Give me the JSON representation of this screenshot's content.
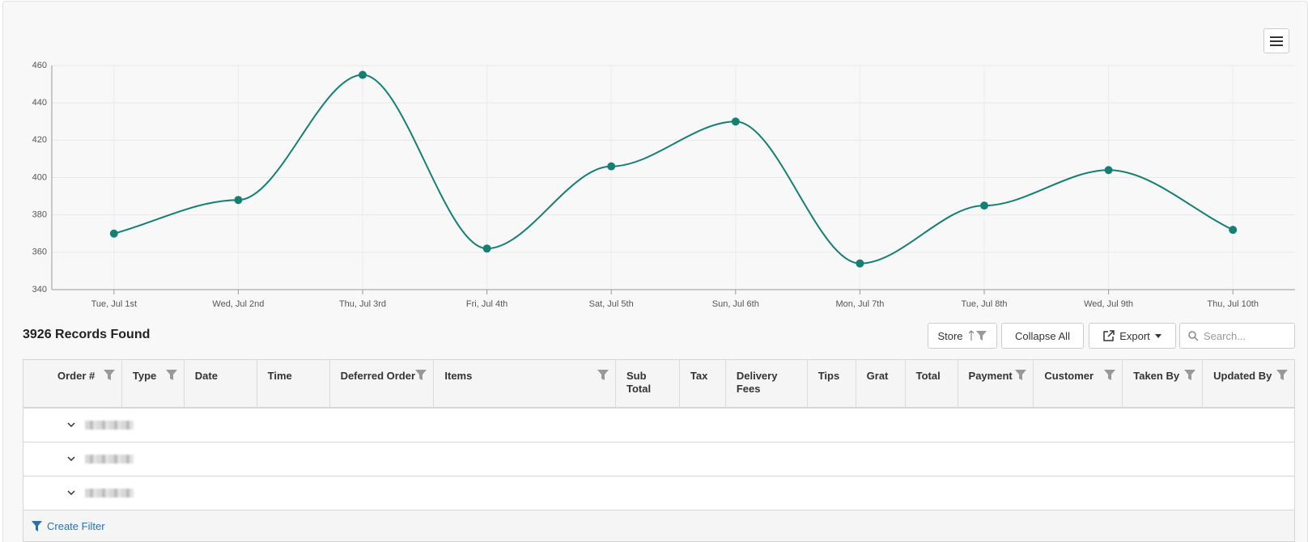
{
  "chart_data": {
    "type": "line",
    "smooth": true,
    "categories": [
      "Tue, Jul 1st",
      "Wed, Jul 2nd",
      "Thu, Jul 3rd",
      "Fri, Jul 4th",
      "Sat, Jul 5th",
      "Sun, Jul 6th",
      "Mon, Jul 7th",
      "Tue, Jul 8th",
      "Wed, Jul 9th",
      "Thu, Jul 10th"
    ],
    "values": [
      370,
      388,
      455,
      362,
      406,
      430,
      354,
      385,
      404,
      372
    ],
    "color": "#167f73",
    "ylim": [
      340,
      460
    ],
    "yticks": [
      340,
      360,
      380,
      400,
      420,
      440,
      460
    ],
    "grid": true
  },
  "records_found": "3926 Records Found",
  "toolbar": {
    "store": "Store",
    "collapse": "Collapse All",
    "export": "Export",
    "search_placeholder": "Search..."
  },
  "table": {
    "columns": [
      {
        "label": "Order #",
        "filter": true
      },
      {
        "label": "Type",
        "filter": true
      },
      {
        "label": "Date",
        "filter": false
      },
      {
        "label": "Time",
        "filter": false
      },
      {
        "label": "Deferred Order",
        "filter": true
      },
      {
        "label": "Items",
        "filter": true
      },
      {
        "label": "Sub Total",
        "filter": false
      },
      {
        "label": "Tax",
        "filter": false
      },
      {
        "label": "Delivery Fees",
        "filter": false
      },
      {
        "label": "Tips",
        "filter": false
      },
      {
        "label": "Grat",
        "filter": false
      },
      {
        "label": "Total",
        "filter": false
      },
      {
        "label": "Payment",
        "filter": true
      },
      {
        "label": "Customer",
        "filter": true
      },
      {
        "label": "Taken By",
        "filter": true
      },
      {
        "label": "Updated By",
        "filter": true
      }
    ]
  },
  "footer": {
    "create_filter": "Create Filter"
  }
}
